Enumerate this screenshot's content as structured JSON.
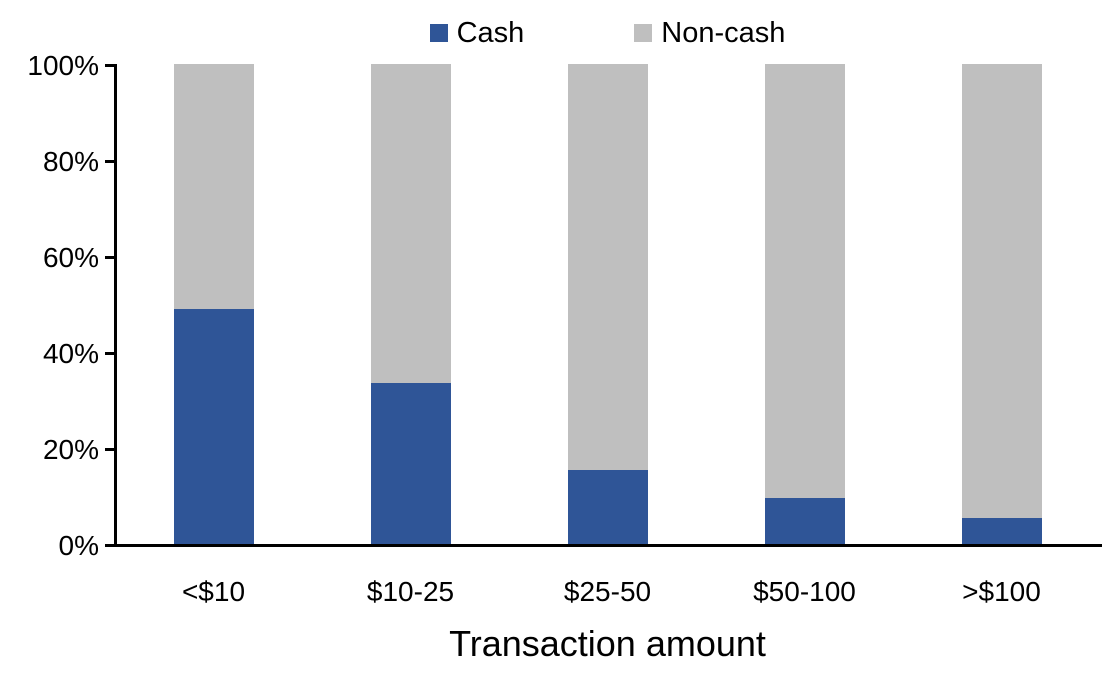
{
  "chart_data": {
    "type": "bar",
    "stacked": true,
    "categories": [
      "<$10",
      "$10-25",
      "$25-50",
      "$50-100",
      ">$100"
    ],
    "series": [
      {
        "name": "Cash",
        "color": "#2F5597",
        "values": [
          49,
          33.5,
          15.5,
          9.5,
          5.5
        ]
      },
      {
        "name": "Non-cash",
        "color": "#BFBFBF",
        "values": [
          51,
          66.5,
          84.5,
          90.5,
          94.5
        ]
      }
    ],
    "xlabel": "Transaction amount",
    "ylabel": "",
    "ylim": [
      0,
      100
    ],
    "yticks": [
      0,
      20,
      40,
      60,
      80,
      100
    ],
    "ytick_labels": [
      "0%",
      "20%",
      "40%",
      "60%",
      "80%",
      "100%"
    ],
    "legend_position": "top",
    "grid": false,
    "axis_color": "#000000",
    "background_color": "#FFFFFF"
  }
}
